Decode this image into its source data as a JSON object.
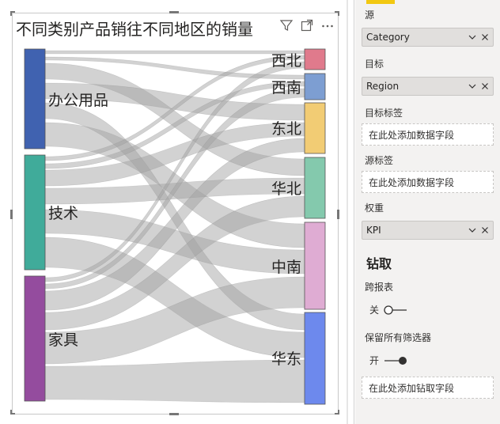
{
  "visual": {
    "title": "不同类别产品销往不同地区的销量",
    "icons": [
      "filter-icon",
      "focus-mode-icon",
      "more-options-icon"
    ]
  },
  "sankey": {
    "sources": [
      {
        "label": "办公用品",
        "color": "#4062b0"
      },
      {
        "label": "技术",
        "color": "#40ab9a"
      },
      {
        "label": "家具",
        "color": "#944c9e"
      }
    ],
    "targets": [
      {
        "label": "西北",
        "color": "#e07a8c"
      },
      {
        "label": "西南",
        "color": "#7d9ed2"
      },
      {
        "label": "东北",
        "color": "#f2cc74"
      },
      {
        "label": "华北",
        "color": "#84c9ad"
      },
      {
        "label": "中南",
        "color": "#dfacd3"
      },
      {
        "label": "华东",
        "color": "#6d89ed"
      }
    ],
    "link_color": "#a0a0a0"
  },
  "pane": {
    "source_label": "源",
    "source_value": "Category",
    "target_label": "目标",
    "target_value": "Region",
    "target_label_label": "目标标签",
    "target_label_placeholder": "在此处添加数据字段",
    "source_label_label": "源标签",
    "source_label_placeholder": "在此处添加数据字段",
    "weight_label": "权重",
    "weight_value": "KPI",
    "drill_title": "钻取",
    "cross_report_label": "跨报表",
    "cross_report_state": "关",
    "keep_filters_label": "保留所有筛选器",
    "keep_filters_state": "开",
    "drill_placeholder": "在此处添加钻取字段"
  }
}
